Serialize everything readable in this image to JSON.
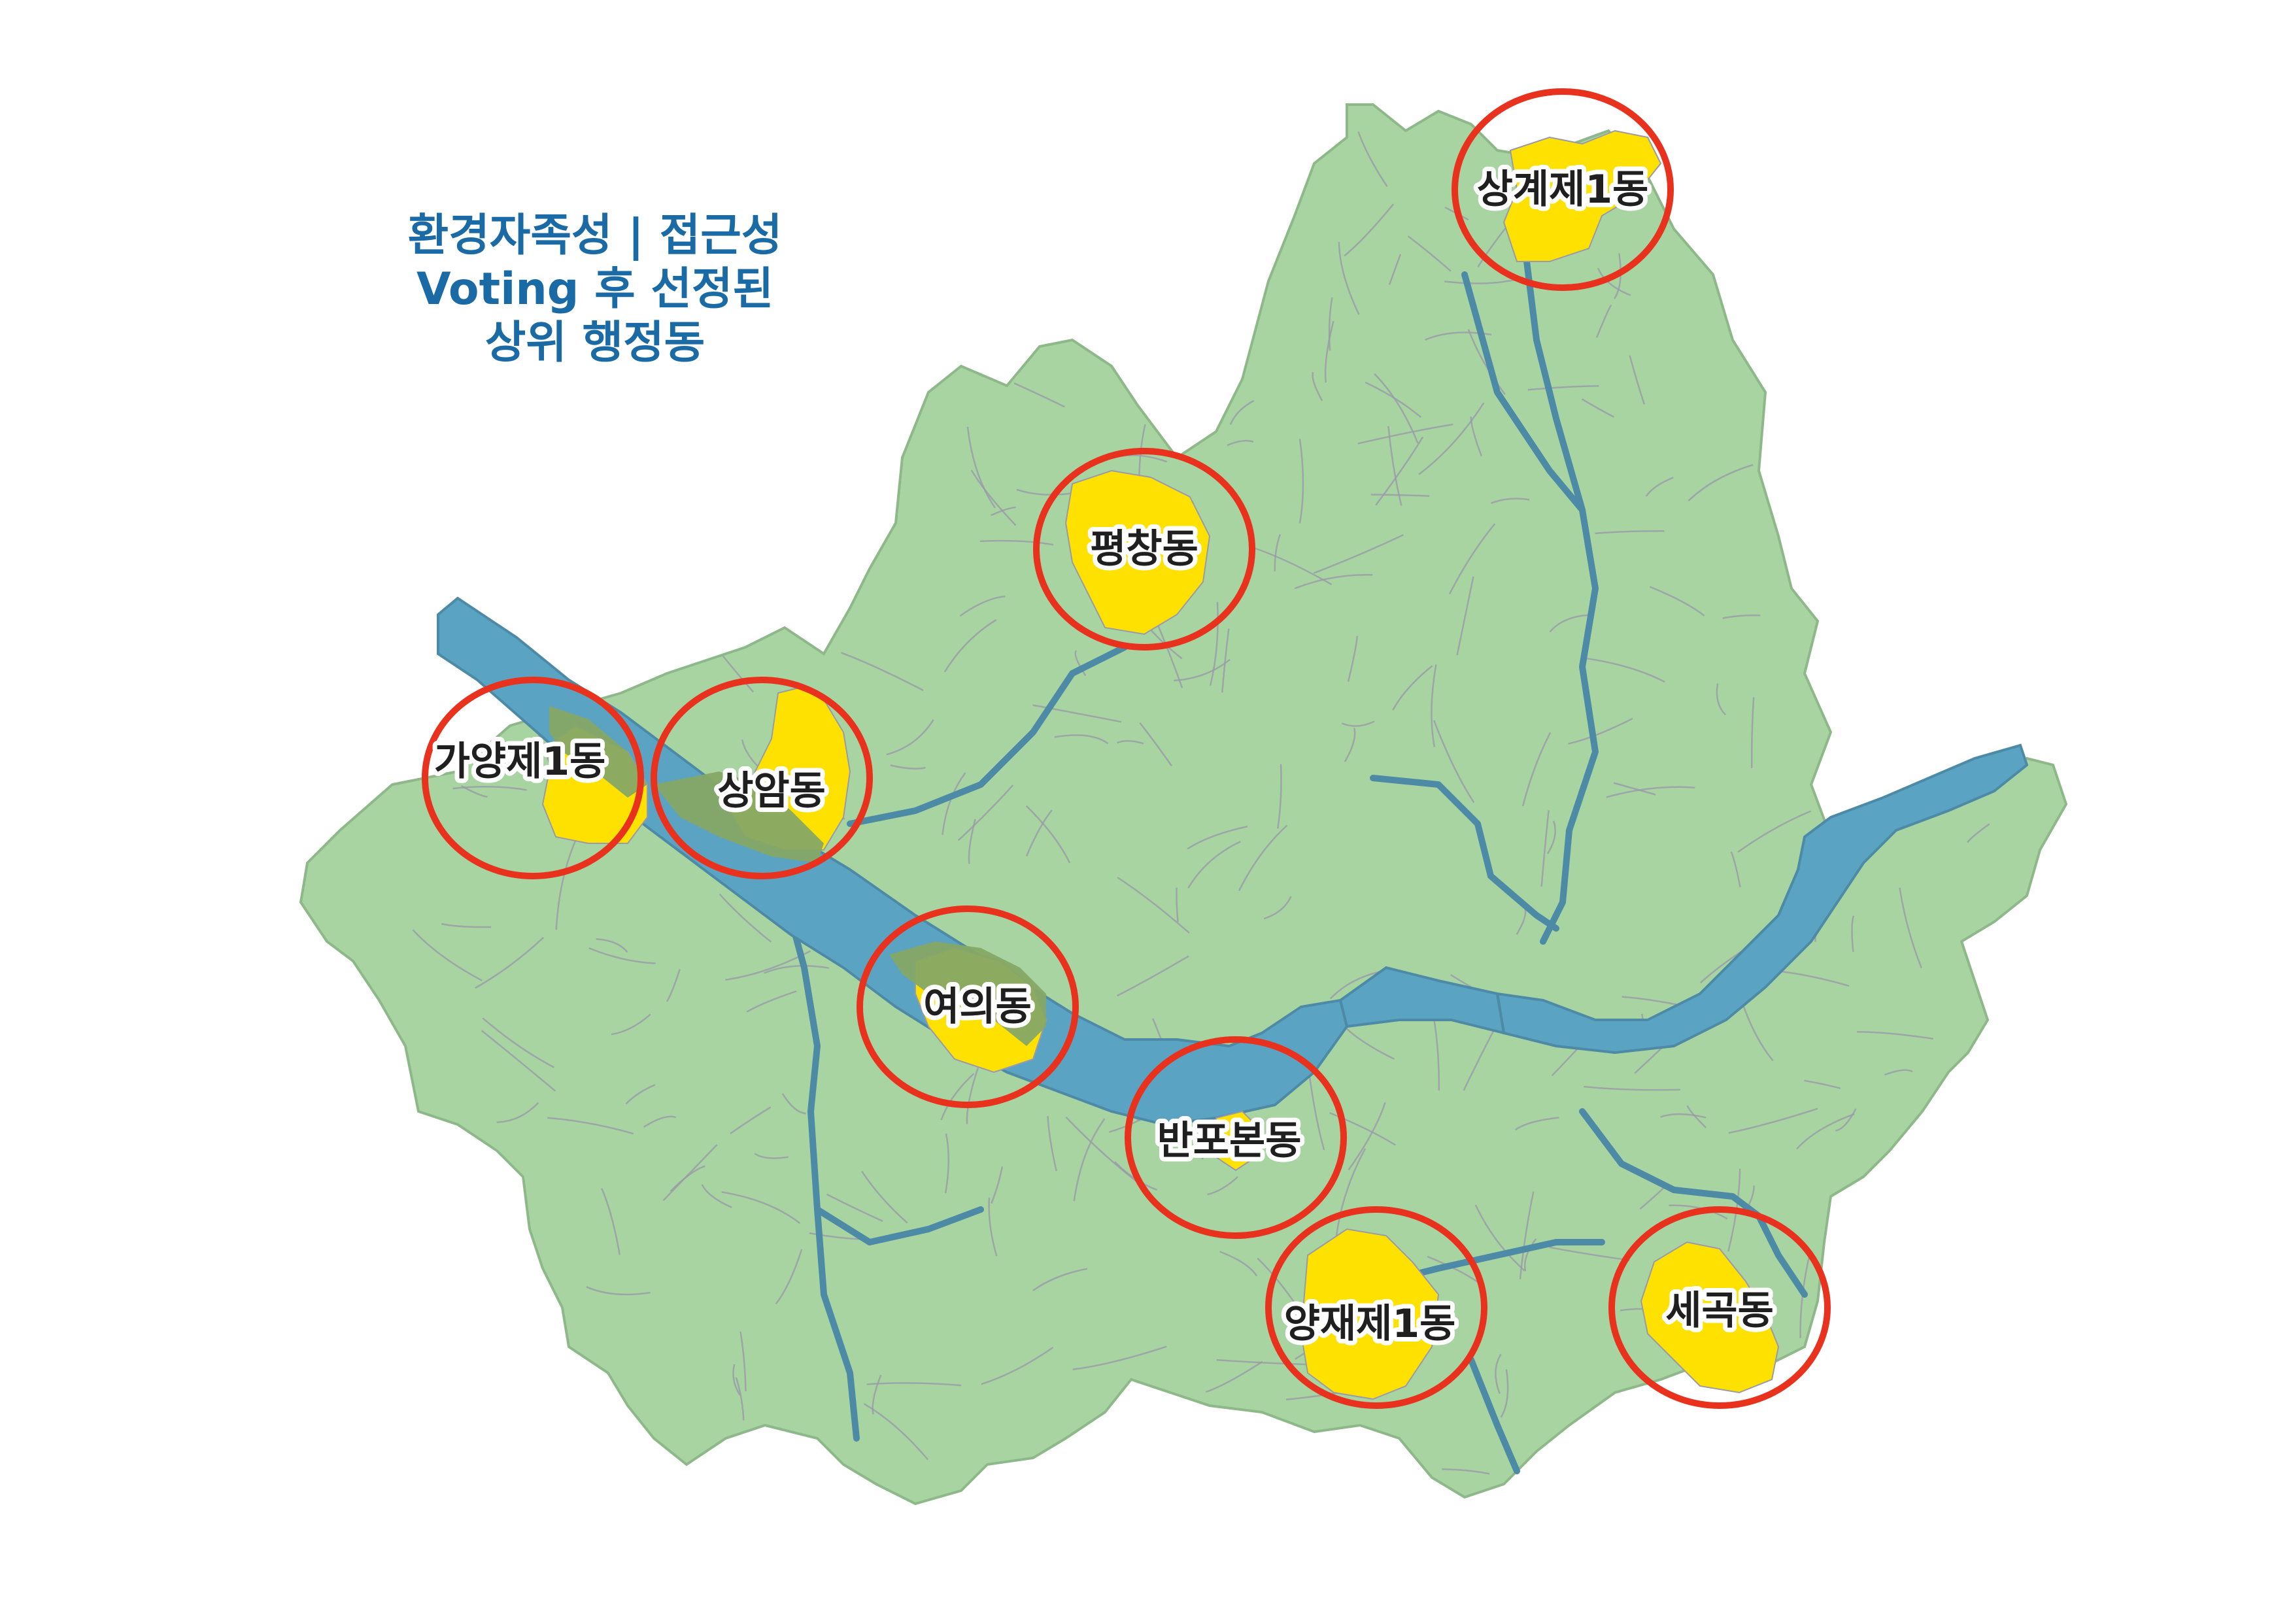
{
  "title": {
    "line1": "환경자족성 | 접근성",
    "line2": "Voting 후 선정된",
    "line3": "상위 행정동"
  },
  "highlighted_dongs": [
    {
      "key": "sanggye1",
      "label": "상계제1동"
    },
    {
      "key": "pyeongchang",
      "label": "평창동"
    },
    {
      "key": "gayang1",
      "label": "가양제1동"
    },
    {
      "key": "sangam",
      "label": "상암동"
    },
    {
      "key": "yeoui",
      "label": "여의동"
    },
    {
      "key": "banpobon",
      "label": "반포본동"
    },
    {
      "key": "yangjae1",
      "label": "양재제1동"
    },
    {
      "key": "segok",
      "label": "세곡동"
    }
  ],
  "colors": {
    "land": "#a8d4a2",
    "river": "#5ba3c2",
    "river_dark": "#4d8aa6",
    "highlight": "#ffe100",
    "overlap": "#86a865",
    "circle": "#e8321e",
    "boundary": "#9a9aa8",
    "title": "#1a6aa6"
  }
}
